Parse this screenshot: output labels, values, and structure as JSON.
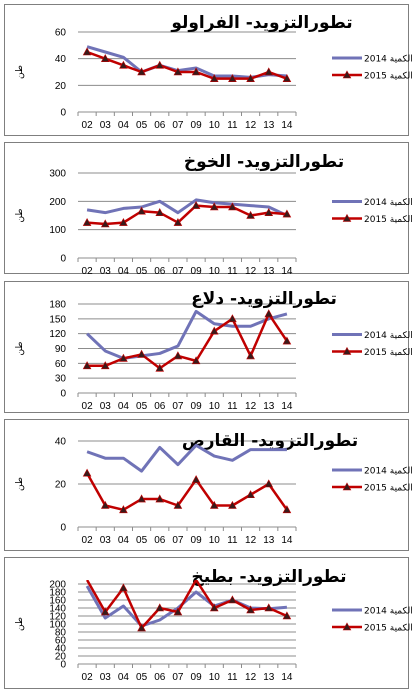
{
  "chart_data": [
    {
      "type": "line",
      "title": "تطورالتزويد- الفراولو",
      "ylabel": "طن",
      "ylim": [
        0,
        60
      ],
      "yticks": [
        0,
        20,
        40,
        60
      ],
      "categories": [
        "02",
        "03",
        "04",
        "05",
        "06",
        "07",
        "09",
        "10",
        "11",
        "12",
        "13",
        "14"
      ],
      "series": [
        {
          "name": "الكمية 2014",
          "values": [
            49,
            45,
            41,
            30,
            35,
            31,
            33,
            27,
            27,
            26,
            28,
            27
          ]
        },
        {
          "name": "الكمية 2015",
          "values": [
            45,
            40,
            35,
            30,
            35,
            30,
            30,
            25,
            25,
            25,
            30,
            25
          ]
        }
      ]
    },
    {
      "type": "line",
      "title": "تطورالتزويد- الخوخ",
      "ylabel": "طن",
      "ylim": [
        0,
        300
      ],
      "yticks": [
        0,
        100,
        200,
        300
      ],
      "categories": [
        "02",
        "03",
        "04",
        "05",
        "06",
        "07",
        "09",
        "10",
        "11",
        "12",
        "13",
        "14"
      ],
      "series": [
        {
          "name": "الكمية 2014",
          "values": [
            170,
            160,
            175,
            180,
            200,
            160,
            205,
            195,
            190,
            185,
            180,
            150
          ]
        },
        {
          "name": "الكمية 2015",
          "values": [
            125,
            120,
            125,
            165,
            160,
            125,
            185,
            180,
            180,
            150,
            160,
            155
          ]
        }
      ]
    },
    {
      "type": "line",
      "title": "تطورالتزويد- دلاع",
      "ylabel": "طن",
      "ylim": [
        0,
        180
      ],
      "yticks": [
        0,
        30,
        60,
        90,
        120,
        150,
        180
      ],
      "categories": [
        "02",
        "03",
        "04",
        "05",
        "06",
        "07",
        "09",
        "10",
        "11",
        "12",
        "13",
        "14"
      ],
      "series": [
        {
          "name": "الكمية 2014",
          "values": [
            120,
            85,
            70,
            75,
            80,
            95,
            165,
            140,
            135,
            135,
            150,
            160
          ]
        },
        {
          "name": "الكمية 2015",
          "values": [
            55,
            55,
            70,
            78,
            50,
            75,
            65,
            125,
            150,
            75,
            160,
            105
          ]
        }
      ]
    },
    {
      "type": "line",
      "title": "تطورالتزويد- القارص",
      "ylabel": "طن",
      "ylim": [
        0,
        40
      ],
      "yticks": [
        0,
        20,
        40
      ],
      "categories": [
        "02",
        "03",
        "04",
        "05",
        "06",
        "07",
        "09",
        "10",
        "11",
        "12",
        "13",
        "14"
      ],
      "series": [
        {
          "name": "الكمية 2014",
          "values": [
            35,
            32,
            32,
            26,
            37,
            29,
            38,
            33,
            31,
            36,
            36,
            36
          ]
        },
        {
          "name": "الكمية 2015",
          "values": [
            25,
            10,
            8,
            13,
            13,
            10,
            22,
            10,
            10,
            15,
            20,
            8
          ]
        }
      ]
    },
    {
      "type": "line",
      "title": "تطورالتزويد- بطيخ",
      "ylabel": "طن",
      "ylim": [
        0,
        200
      ],
      "yticks": [
        0,
        20,
        40,
        60,
        80,
        100,
        120,
        140,
        160,
        180,
        200
      ],
      "categories": [
        "02",
        "03",
        "04",
        "05",
        "06",
        "07",
        "09",
        "10",
        "11",
        "12",
        "13",
        "14"
      ],
      "series": [
        {
          "name": "الكمية 2014",
          "values": [
            195,
            115,
            145,
            95,
            110,
            140,
            180,
            145,
            160,
            140,
            138,
            142
          ]
        },
        {
          "name": "الكمية 2015",
          "values": [
            210,
            130,
            190,
            90,
            140,
            130,
            210,
            140,
            160,
            135,
            140,
            120
          ]
        }
      ]
    }
  ],
  "colors": {
    "series_2014": "#7073b7",
    "series_2015": "#c00000",
    "marker_2015": "#3a1a1a",
    "grid": "#8c8c8c",
    "border": "#7f7f7f"
  }
}
